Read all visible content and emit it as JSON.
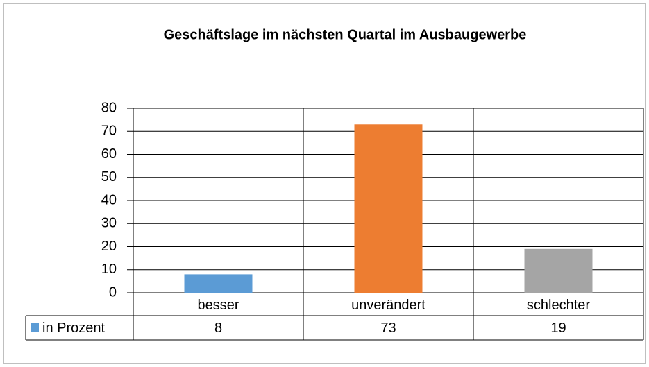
{
  "chart_data": {
    "type": "bar",
    "title": "Geschäftslage im nächsten Quartal im Ausbaugewerbe",
    "categories": [
      "besser",
      "unverändert",
      "schlechter"
    ],
    "series": [
      {
        "name": "in Prozent",
        "color": "#5b9bd5",
        "point_colors": [
          "#5b9bd5",
          "#ed7d31",
          "#a5a5a5"
        ],
        "values": [
          8,
          73,
          19
        ]
      }
    ],
    "ylim": [
      0,
      80
    ],
    "yticks": [
      0,
      10,
      20,
      30,
      40,
      50,
      60,
      70,
      80
    ],
    "grid": true,
    "data_table": true
  }
}
